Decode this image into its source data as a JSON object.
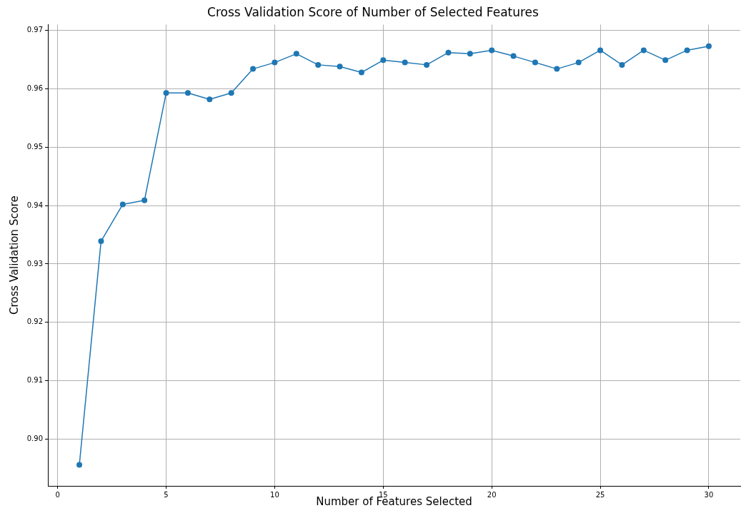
{
  "chart_data": {
    "type": "line",
    "title": "Cross Validation Score of Number of Selected Features",
    "xlabel": "Number of Features Selected",
    "ylabel": "Cross Validation Score",
    "x": [
      1,
      2,
      3,
      4,
      5,
      6,
      7,
      8,
      9,
      10,
      11,
      12,
      13,
      14,
      15,
      16,
      17,
      18,
      19,
      20,
      21,
      22,
      23,
      24,
      25,
      26,
      27,
      28,
      29,
      30
    ],
    "series": [
      {
        "color": "#1f77b4",
        "values": [
          0.8956,
          0.9339,
          0.9402,
          0.9409,
          0.9593,
          0.9593,
          0.9582,
          0.9593,
          0.9634,
          0.9645,
          0.966,
          0.9641,
          0.9638,
          0.9628,
          0.9649,
          0.9645,
          0.9641,
          0.9662,
          0.966,
          0.9666,
          0.9656,
          0.9645,
          0.9634,
          0.9645,
          0.9666,
          0.9641,
          0.9666,
          0.9649,
          0.9666,
          0.9673
        ]
      }
    ],
    "xlim": [
      -0.45,
      31.45
    ],
    "xticks": [
      0,
      5,
      10,
      15,
      20,
      25,
      30
    ],
    "ylim": [
      0.892,
      0.971
    ],
    "yticks": [
      {
        "value": 0.9,
        "label": "0.90"
      },
      0.91,
      0.92,
      0.93,
      0.94,
      0.95,
      0.96,
      0.97
    ],
    "grid": true,
    "marker": "circle",
    "line_style": "solid",
    "legend": false
  }
}
